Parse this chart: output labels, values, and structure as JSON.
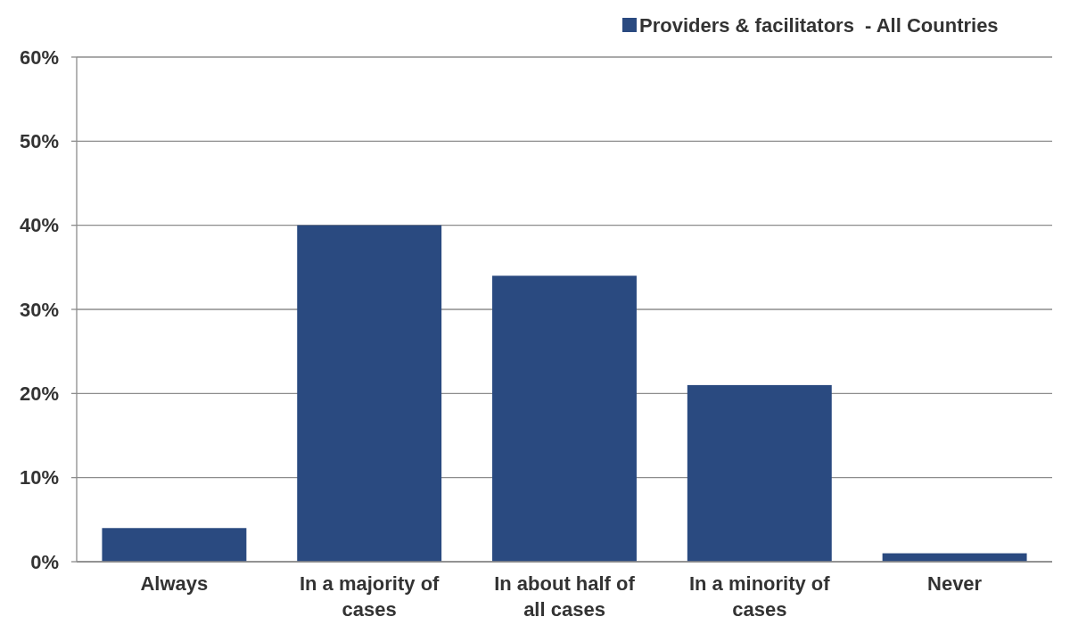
{
  "chart_data": {
    "type": "bar",
    "categories": [
      "Always",
      "In a majority of cases",
      "In about half of all cases",
      "In a minority of cases",
      "Never"
    ],
    "series": [
      {
        "name": "Providers & facilitators  - All Countries",
        "color": "#2a4a80",
        "values": [
          4,
          40,
          34,
          21,
          1
        ]
      }
    ],
    "ylim": [
      0,
      60
    ],
    "yticks": [
      {
        "value": 0,
        "label": "0%"
      },
      {
        "value": 10,
        "label": "10%"
      },
      {
        "value": 20,
        "label": "20%"
      },
      {
        "value": 30,
        "label": "30%"
      },
      {
        "value": 40,
        "label": "40%"
      },
      {
        "value": 50,
        "label": "50%"
      },
      {
        "value": 60,
        "label": "60%"
      }
    ],
    "grid": "y",
    "legend": "top right"
  }
}
